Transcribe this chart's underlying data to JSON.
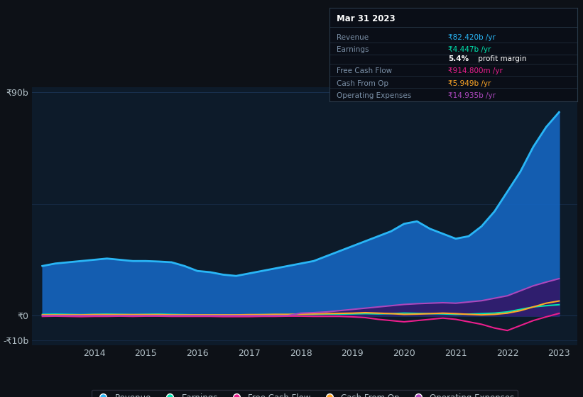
{
  "background_color": "#0d1117",
  "plot_bg_color": "#0d1b2a",
  "ylabel_top": "₹90b",
  "ylabel_zero": "₹0",
  "ylabel_bottom": "-₹10b",
  "ylim": [
    -12,
    92
  ],
  "years": [
    2013.0,
    2013.25,
    2013.5,
    2013.75,
    2014.0,
    2014.25,
    2014.5,
    2014.75,
    2015.0,
    2015.25,
    2015.5,
    2015.75,
    2016.0,
    2016.25,
    2016.5,
    2016.75,
    2017.0,
    2017.25,
    2017.5,
    2017.75,
    2018.0,
    2018.25,
    2018.5,
    2018.75,
    2019.0,
    2019.25,
    2019.5,
    2019.75,
    2020.0,
    2020.25,
    2020.5,
    2020.75,
    2021.0,
    2021.25,
    2021.5,
    2021.75,
    2022.0,
    2022.25,
    2022.5,
    2022.75,
    2023.0
  ],
  "revenue": [
    20,
    21,
    21.5,
    22,
    22.5,
    23,
    22.5,
    22,
    22,
    21.8,
    21.5,
    20,
    18,
    17.5,
    16.5,
    16,
    17,
    18,
    19,
    20,
    21,
    22,
    24,
    26,
    28,
    30,
    32,
    34,
    37,
    38,
    35,
    33,
    31,
    32,
    36,
    42,
    50,
    58,
    68,
    76,
    82
  ],
  "earnings": [
    0.5,
    0.6,
    0.5,
    0.4,
    0.5,
    0.6,
    0.5,
    0.4,
    0.5,
    0.6,
    0.5,
    0.4,
    0.3,
    0.3,
    0.3,
    0.3,
    0.3,
    0.4,
    0.4,
    0.4,
    0.5,
    0.5,
    0.6,
    0.6,
    0.7,
    0.8,
    0.7,
    0.8,
    1.0,
    0.9,
    0.8,
    0.7,
    0.5,
    0.6,
    0.8,
    1.0,
    1.5,
    2.5,
    3.5,
    4.0,
    4.4
  ],
  "free_cash_flow": [
    -0.3,
    -0.2,
    -0.3,
    -0.4,
    -0.3,
    -0.3,
    -0.2,
    -0.3,
    -0.2,
    -0.2,
    -0.3,
    -0.3,
    -0.3,
    -0.3,
    -0.4,
    -0.4,
    -0.4,
    -0.3,
    -0.3,
    -0.2,
    -0.2,
    -0.3,
    -0.3,
    -0.3,
    -0.5,
    -0.8,
    -1.5,
    -2.0,
    -2.5,
    -2.0,
    -1.5,
    -1.0,
    -1.5,
    -2.5,
    -3.5,
    -5.0,
    -6.0,
    -4.0,
    -2.0,
    -0.5,
    0.9
  ],
  "cash_from_op": [
    0.3,
    0.3,
    0.3,
    0.3,
    0.4,
    0.4,
    0.4,
    0.4,
    0.4,
    0.4,
    0.3,
    0.3,
    0.3,
    0.3,
    0.3,
    0.3,
    0.4,
    0.4,
    0.5,
    0.5,
    0.6,
    0.7,
    0.8,
    0.9,
    1.0,
    1.2,
    1.0,
    0.8,
    0.5,
    0.6,
    0.8,
    1.0,
    0.8,
    0.5,
    0.3,
    0.5,
    1.0,
    2.0,
    3.5,
    5.0,
    5.9
  ],
  "operating_expenses": [
    0.0,
    0.0,
    0.0,
    0.0,
    0.0,
    0.0,
    0.0,
    0.0,
    0.0,
    0.0,
    0.0,
    0.0,
    0.0,
    0.0,
    0.0,
    0.0,
    0.0,
    0.0,
    0.0,
    0.0,
    1.0,
    1.2,
    1.5,
    2.0,
    2.5,
    3.0,
    3.5,
    4.0,
    4.5,
    4.8,
    5.0,
    5.2,
    5.0,
    5.5,
    6.0,
    7.0,
    8.0,
    10.0,
    12.0,
    13.5,
    14.9
  ],
  "revenue_color": "#29b6f6",
  "revenue_fill": "#1565c0",
  "earnings_color": "#00e5b0",
  "free_cash_flow_color": "#e91e8c",
  "cash_from_op_color": "#ffa726",
  "operating_expenses_color": "#ab47bc",
  "operating_expenses_fill": "#311b6b",
  "grid_color": "#1e3a5f",
  "text_color": "#b0bec5",
  "label_color": "#7a8fa6",
  "xtick_years": [
    2014,
    2015,
    2016,
    2017,
    2018,
    2019,
    2020,
    2021,
    2022,
    2023
  ],
  "legend_labels": [
    "Revenue",
    "Earnings",
    "Free Cash Flow",
    "Cash From Op",
    "Operating Expenses"
  ],
  "legend_colors": [
    "#29b6f6",
    "#00e5b0",
    "#e91e8c",
    "#ffa726",
    "#ab47bc"
  ],
  "info_title": "Mar 31 2023",
  "info_bg": "#0a0e17",
  "info_border": "#2a3a4a",
  "info_rows": [
    {
      "label": "Revenue",
      "value": "₹82.420b /yr",
      "value_color": "#29b6f6"
    },
    {
      "label": "Earnings",
      "value": "₹4.447b /yr",
      "value_color": "#00e5b0"
    },
    {
      "label": "",
      "value": "5.4% profit margin",
      "value_color": "#ffffff",
      "bold": "5.4%"
    },
    {
      "label": "Free Cash Flow",
      "value": "₹914.800m /yr",
      "value_color": "#e91e8c"
    },
    {
      "label": "Cash From Op",
      "value": "₹5.949b /yr",
      "value_color": "#ffa726"
    },
    {
      "label": "Operating Expenses",
      "value": "₹14.935b /yr",
      "value_color": "#ab47bc"
    }
  ]
}
